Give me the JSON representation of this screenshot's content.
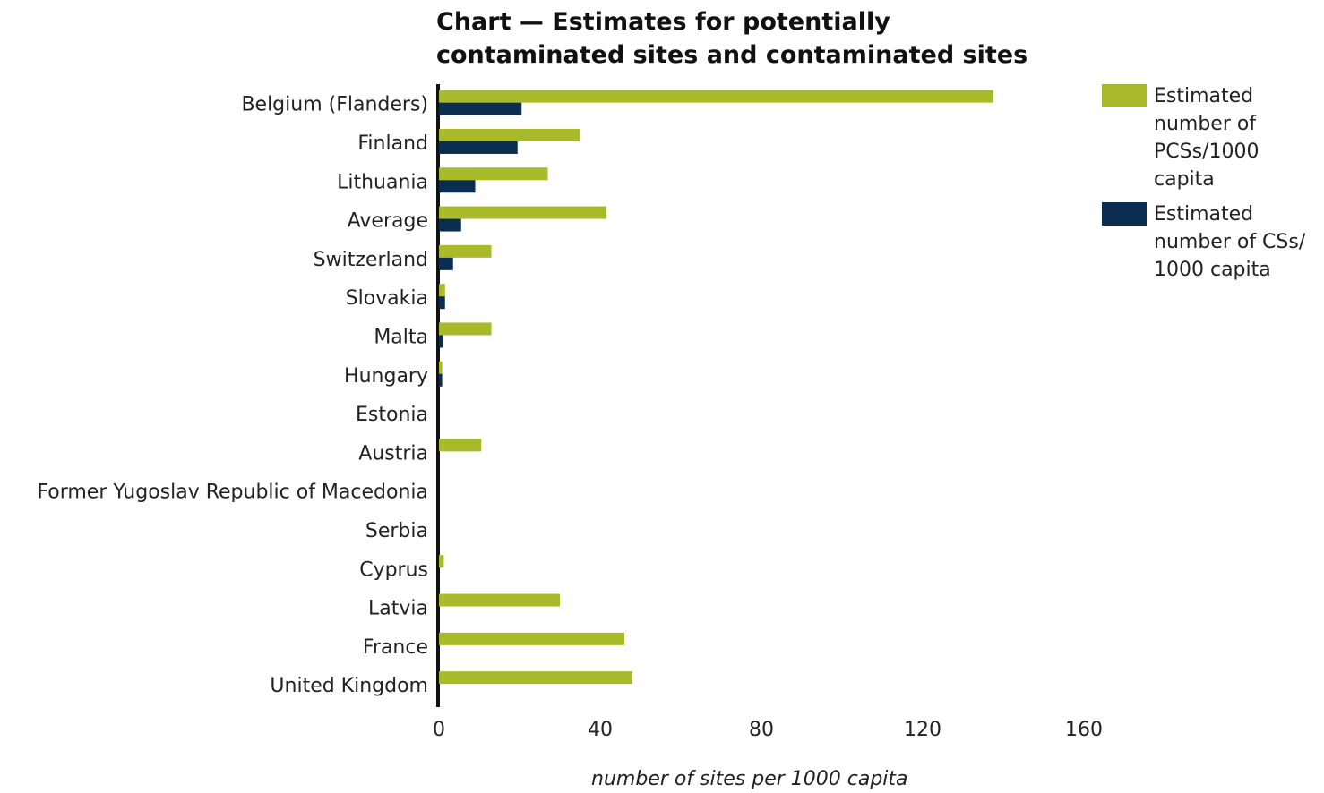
{
  "chart_data": {
    "type": "bar",
    "orientation": "horizontal",
    "title_lines": [
      "Chart — Estimates for potentially",
      "contaminated sites and contaminated sites"
    ],
    "xlabel": "number of sites per 1000 capita",
    "ylabel": "",
    "xlim": [
      0,
      160
    ],
    "xticks": [
      0,
      40,
      80,
      120,
      160
    ],
    "grid": false,
    "legend_position": "top-right",
    "categories": [
      "Belgium (Flanders)",
      "Finland",
      "Lithuania",
      "Average",
      "Switzerland",
      "Slovakia",
      "Malta",
      "Hungary",
      "Estonia",
      "Austria",
      "Former Yugoslav Republic of Macedonia",
      "Serbia",
      "Cyprus",
      "Latvia",
      "France",
      "United Kingdom"
    ],
    "series": [
      {
        "name": "Estimated number of PCSs/1000 capita",
        "color": "#a8b92a",
        "values": [
          137.5,
          35,
          27,
          41.5,
          13,
          1.5,
          13,
          0.8,
          0,
          10.5,
          0,
          0,
          1.2,
          30,
          46,
          48
        ]
      },
      {
        "name": "Estimated number of CSs/1000 capita",
        "color": "#0c2d52",
        "values": [
          20.5,
          19.5,
          9,
          5.5,
          3.5,
          1.5,
          1,
          0.8,
          0,
          0,
          0,
          0,
          0,
          0,
          0,
          0
        ]
      }
    ],
    "legend": [
      {
        "lines": [
          "Estimated",
          "number of",
          "PCSs/1000",
          "capita"
        ],
        "color": "#a8b92a"
      },
      {
        "lines": [
          "Estimated",
          "number of CSs/",
          "1000 capita"
        ],
        "color": "#0c2d52"
      }
    ]
  }
}
